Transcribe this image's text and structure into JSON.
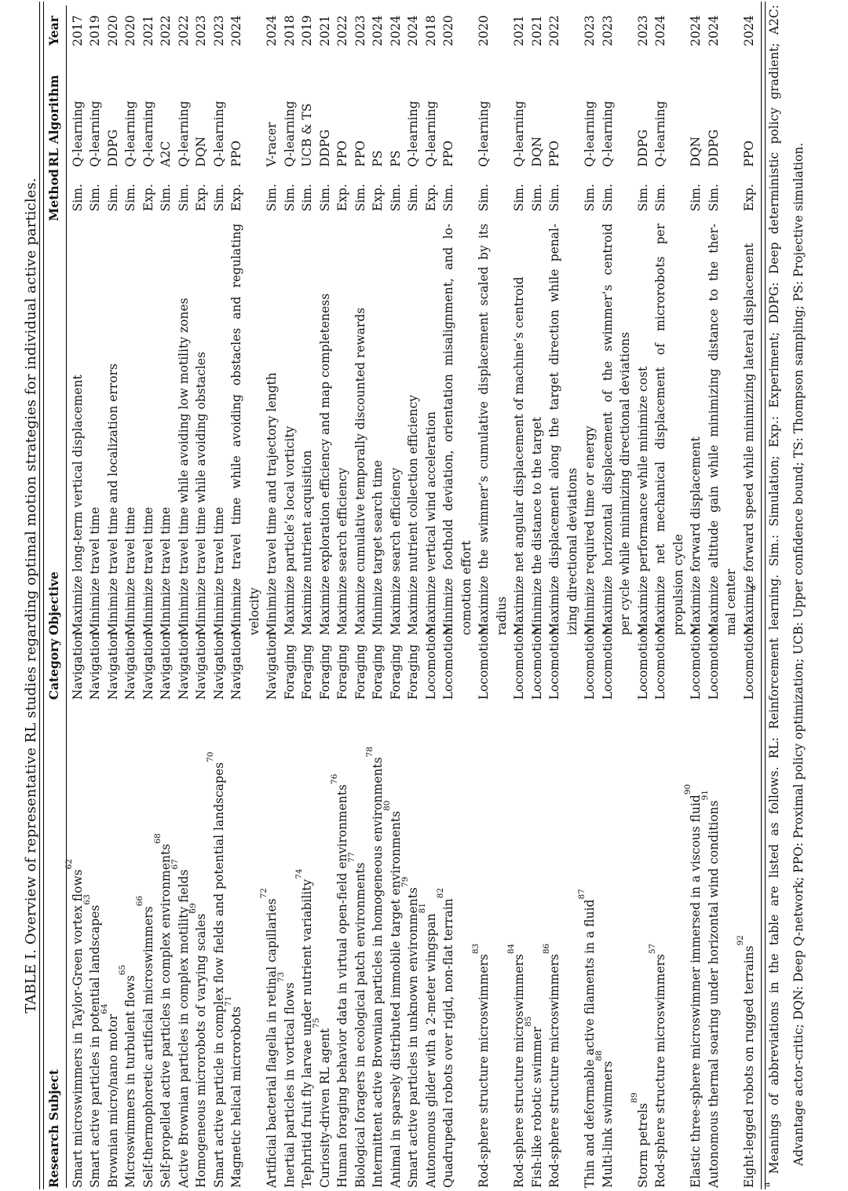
{
  "title": "TABLE I. Overview of representative RL studies regarding optimal motion strategies for individual active particles.",
  "table": {
    "headers": {
      "subject": "Research Subject",
      "category": "Category",
      "objective": "Objective",
      "method": "Method",
      "algorithm": "RL Algorithm",
      "year": "Year"
    },
    "footnote_marker": "a",
    "rows": [
      {
        "subject": "Smart microswimmers in Taylor-Green vortex flows",
        "ref": "62",
        "category": "Navigation",
        "objective": "Maximize long-term vertical displacement",
        "method": "Sim.",
        "algorithm": "Q-learning",
        "year": "2017"
      },
      {
        "subject": "Smart active particles in potential landscapes",
        "ref": "63",
        "category": "Navigation",
        "objective": "Minimize travel time",
        "method": "Sim.",
        "algorithm": "Q-learning",
        "year": "2019"
      },
      {
        "subject": "Brownian micro/nano motor",
        "ref": "64",
        "category": "Navigation",
        "objective": "Minimize travel time and localization errors",
        "method": "Sim.",
        "algorithm": "DDPG",
        "year": "2020"
      },
      {
        "subject": "Microswimmers in turbulent flows",
        "ref": "65",
        "category": "Navigation",
        "objective": "Minimize travel time",
        "method": "Sim.",
        "algorithm": "Q-learning",
        "year": "2020"
      },
      {
        "subject": "Self-thermophoretic artificial microswimmers",
        "ref": "66",
        "category": "Navigation",
        "objective": "Minimize travel time",
        "method": "Exp.",
        "algorithm": "Q-learning",
        "year": "2021"
      },
      {
        "subject": "Self-propelled active particles in complex environments",
        "ref": "68",
        "category": "Navigation",
        "objective": "Minimize travel time",
        "method": "Sim.",
        "algorithm": "A2C",
        "year": "2022"
      },
      {
        "subject": "Active Brownian particles in complex motility fields",
        "ref": "67",
        "category": "Navigation",
        "objective": "Minimize travel time while avoiding low motility zones",
        "method": "Sim.",
        "algorithm": "Q-learning",
        "year": "2022"
      },
      {
        "subject": "Homogeneous microrobots of varying scales",
        "ref": "69",
        "category": "Navigation",
        "objective": "Minimize travel time while avoiding obstacles",
        "method": "Exp.",
        "algorithm": "DQN",
        "year": "2023"
      },
      {
        "subject": "Smart active particle in complex flow fields and potential landscapes",
        "ref": "70",
        "category": "Navigation",
        "objective": "Minimize travel time",
        "method": "Sim.",
        "algorithm": "Q-learning",
        "year": "2023"
      },
      {
        "subject": "Magnetic helical microrobots",
        "ref": "71",
        "category": "Navigation",
        "objective": "Minimize travel time while avoiding obstacles and regulating\nvelocity",
        "method": "Exp.",
        "algorithm": "PPO",
        "year": "2024"
      },
      {
        "subject": "Artificial bacterial flagella in retinal capillaries",
        "ref": "72",
        "category": "Navigation",
        "objective": "Minimize travel time and trajectory length",
        "method": "Sim.",
        "algorithm": "V-racer",
        "year": "2024"
      },
      {
        "subject": "Inertial particles in vortical flows",
        "ref": "73",
        "category": "Foraging",
        "objective": "Maximize particle’s local vorticity",
        "method": "Sim.",
        "algorithm": "Q-learning",
        "year": "2018"
      },
      {
        "subject": "Tephritid fruit fly larvae under nutrient variability",
        "ref": "74",
        "category": "Foraging",
        "objective": "Maximize nutrient acquisition",
        "method": "Sim.",
        "algorithm": "UCB & TS",
        "year": "2019"
      },
      {
        "subject": "Curiosity-driven RL agent",
        "ref": "75",
        "category": "Foraging",
        "objective": "Maximize exploration efficiency and map completeness",
        "method": "Sim.",
        "algorithm": "DDPG",
        "year": "2021"
      },
      {
        "subject": "Human foraging behavior data in virtual open-field environments",
        "ref": "76",
        "category": "Foraging",
        "objective": "Maximize search efficiency",
        "method": "Exp.",
        "algorithm": "PPO",
        "year": "2022"
      },
      {
        "subject": "Biological foragers in ecological patch environments",
        "ref": "77",
        "category": "Foraging",
        "objective": "Maximize cumulative temporally discounted rewards",
        "method": "Sim.",
        "algorithm": "PPO",
        "year": "2023"
      },
      {
        "subject": "Intermittent active Brownian particles in homogeneous environments",
        "ref": "78",
        "category": "Foraging",
        "objective": "Minimize target search time",
        "method": "Exp.",
        "algorithm": "PS",
        "year": "2024"
      },
      {
        "subject": "Animal in sparsely distributed immobile target environments",
        "ref": "80",
        "category": "Foraging",
        "objective": "Maximize search efficiency",
        "method": "Sim.",
        "algorithm": "PS",
        "year": "2024"
      },
      {
        "subject": "Smart active particles in unknown environments",
        "ref": "79",
        "category": "Foraging",
        "objective": "Maximize nutrient collection efficiency",
        "method": "Sim.",
        "algorithm": "Q-learning",
        "year": "2024"
      },
      {
        "subject": "Autonomous glider with a 2-meter wingspan",
        "ref": "81",
        "category": "Locomotion",
        "objective": "Maximize vertical wind acceleration",
        "method": "Exp.",
        "algorithm": "Q-learning",
        "year": "2018"
      },
      {
        "subject": "Quadrupedal robots over rigid, non-flat terrain",
        "ref": "82",
        "category": "Locomotion",
        "objective": "Minimize foothold deviation, orientation misalignment, and lo-\ncomotion effort",
        "method": "Sim.",
        "algorithm": "PPO",
        "year": "2020"
      },
      {
        "subject": "Rod-sphere structure microswimmers",
        "ref": "83",
        "category": "Locomotion",
        "objective": "Maximize the swimmer’s cumulative displacement scaled by its\nradius",
        "method": "Sim.",
        "algorithm": "Q-learning",
        "year": "2020"
      },
      {
        "subject": "Rod-sphere structure microswimmers",
        "ref": "84",
        "category": "Locomotion",
        "objective": "Maximize net angular displacement of machine’s centroid",
        "method": "Sim.",
        "algorithm": "Q-learning",
        "year": "2021"
      },
      {
        "subject": "Fish-like robotic swimmer",
        "ref": "85",
        "category": "Locomotion",
        "objective": "Minimize the distance to the target",
        "method": "Sim.",
        "algorithm": "DQN",
        "year": "2021"
      },
      {
        "subject": "Rod-sphere structure microswimmers",
        "ref": "86",
        "category": "Locomotion",
        "objective": "Maximize displacement along the target direction while penal-\nizing directional deviations",
        "method": "Sim.",
        "algorithm": "PPO",
        "year": "2022"
      },
      {
        "subject": "Thin and deformable active filaments in a fluid",
        "ref": "87",
        "category": "Locomotion",
        "objective": "Minimize required time or energy",
        "method": "Sim.",
        "algorithm": "Q-learning",
        "year": "2023"
      },
      {
        "subject": "Multi-link swimmers",
        "ref": "88",
        "category": "Locomotion",
        "objective": "Maximize horizontal displacement of the swimmer’s centroid\nper cycle while minimizing directional deviations",
        "method": "Sim.",
        "algorithm": "Q-learning",
        "year": "2023"
      },
      {
        "subject": "Storm petrels",
        "ref": "89",
        "category": "Locomotion",
        "objective": "Maximize performance while minimize cost",
        "method": "Sim.",
        "algorithm": "DDPG",
        "year": "2023"
      },
      {
        "subject": "Rod-sphere structure microswimmers",
        "ref": "57",
        "category": "Locomotion",
        "objective": "Maximize net mechanical displacement of microrobots per\npropulsion cycle",
        "method": "Sim.",
        "algorithm": "Q-learning",
        "year": "2024"
      },
      {
        "subject": "Elastic three-sphere microswimmer immersed in a viscous fluid",
        "ref": "90",
        "category": "Locomotion",
        "objective": "Maximize forward displacement",
        "method": "Sim.",
        "algorithm": "DQN",
        "year": "2024"
      },
      {
        "subject": "Autonomous thermal soaring under horizontal wind conditions",
        "ref": "91",
        "category": "Locomotion",
        "objective": "Maximize altitude gain while minimizing distance to the ther-\nmal center",
        "method": "Sim.",
        "algorithm": "DDPG",
        "year": "2024"
      },
      {
        "subject": "Eight-legged robots on rugged terrains",
        "ref": "92",
        "category": "Locomotion",
        "objective": "Maximize forward speed while minimizing lateral displacement",
        "method": "Exp.",
        "algorithm": "PPO",
        "year": "2024"
      }
    ]
  },
  "footnote": {
    "marker": "a",
    "line1": "Meanings of abbreviations in the table are listed as follows. RL: Reinforcement learning. Sim.: Simulation; Exp.: Experiment; DDPG: Deep deterministic policy gradient; A2C:",
    "line2": "Advantage actor-critic; DQN: Deep Q-network; PPO: Proximal policy optimization; UCB: Upper confidence bound; TS: Thompson sampling; PS: Projective simulation."
  }
}
